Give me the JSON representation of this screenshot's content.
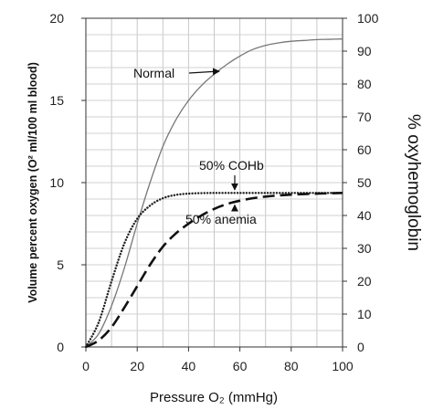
{
  "chart_data": {
    "type": "line",
    "xlabel": "Pressure O₂ (mmHg)",
    "ylabel_left": "Volume percent oxygen (O² ml/100 ml blood)",
    "ylabel_right": "% oxyhemoglobin",
    "xlim": [
      0,
      100
    ],
    "ylim_left": [
      0,
      20
    ],
    "ylim_right": [
      0,
      100
    ],
    "xticks": [
      0,
      20,
      40,
      60,
      80,
      100
    ],
    "yticks_left": [
      0,
      5,
      10,
      15,
      20
    ],
    "yticks_right": [
      0,
      10,
      20,
      30,
      40,
      50,
      60,
      70,
      80,
      90,
      100
    ],
    "grid": true,
    "series": [
      {
        "name": "Normal",
        "style": "solid",
        "color": "#777777",
        "x": [
          0,
          5,
          10,
          15,
          20,
          25,
          30,
          35,
          40,
          45,
          50,
          55,
          60,
          65,
          70,
          75,
          80,
          85,
          90,
          95,
          100
        ],
        "y": [
          0,
          0.8,
          2.5,
          4.8,
          7.5,
          10.0,
          12.2,
          13.8,
          15.0,
          15.9,
          16.6,
          17.2,
          17.7,
          18.1,
          18.35,
          18.5,
          18.6,
          18.65,
          18.7,
          18.72,
          18.74
        ]
      },
      {
        "name": "50% COHb",
        "style": "dotted",
        "color": "#222222",
        "x": [
          0,
          5,
          10,
          15,
          20,
          25,
          30,
          35,
          40,
          45,
          50,
          55,
          60,
          70,
          80,
          90,
          100
        ],
        "y": [
          0,
          1.5,
          4.0,
          6.3,
          7.8,
          8.6,
          9.05,
          9.25,
          9.33,
          9.36,
          9.37,
          9.37,
          9.37,
          9.37,
          9.37,
          9.37,
          9.37
        ]
      },
      {
        "name": "50% anemia",
        "style": "dashed",
        "color": "#111111",
        "x": [
          0,
          5,
          10,
          15,
          20,
          25,
          30,
          35,
          40,
          45,
          50,
          55,
          60,
          65,
          70,
          75,
          80,
          85,
          90,
          95,
          100
        ],
        "y": [
          0,
          0.4,
          1.2,
          2.4,
          3.7,
          5.0,
          6.1,
          6.9,
          7.5,
          8.0,
          8.4,
          8.7,
          8.9,
          9.05,
          9.15,
          9.22,
          9.27,
          9.3,
          9.33,
          9.35,
          9.37
        ]
      }
    ],
    "annotations": [
      {
        "label": "Normal",
        "target_x": 58,
        "target_y": 17.0
      },
      {
        "label": "50% COHb",
        "target_x": 58,
        "target_y": 9.4
      },
      {
        "label": "50% anemia",
        "target_x": 58,
        "target_y": 8.8
      }
    ]
  }
}
